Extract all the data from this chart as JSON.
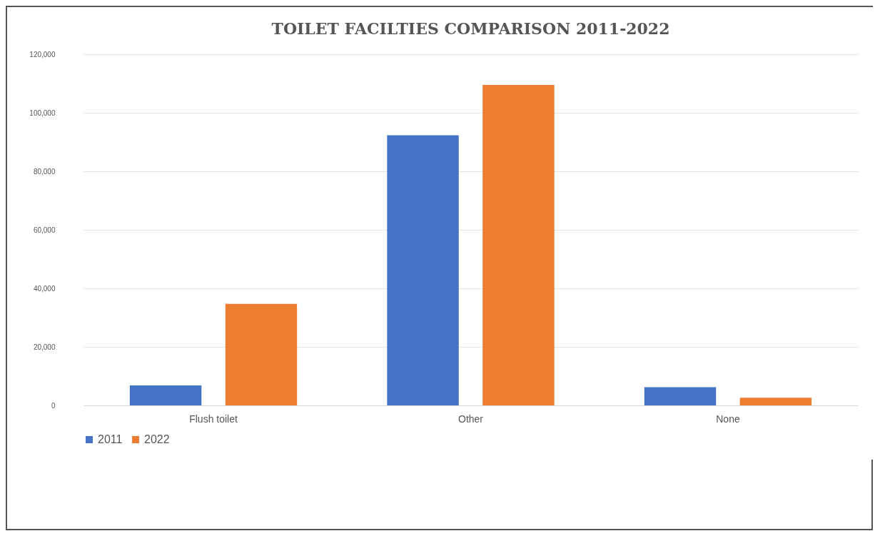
{
  "chart_data": {
    "type": "bar",
    "title": "TOILET FACILTIES COMPARISON 2011-2022",
    "categories": [
      "Flush toilet",
      "Other",
      "None"
    ],
    "series": [
      {
        "name": "2011",
        "color": "#4472c4",
        "values": [
          6800,
          92300,
          6200
        ]
      },
      {
        "name": "2022",
        "color": "#ed7d31",
        "values": [
          34700,
          109500,
          2600
        ]
      }
    ],
    "ylim": [
      0,
      120000
    ],
    "yticks": [
      {
        "value": 0,
        "label": "0"
      },
      {
        "value": 20000,
        "label": "20,000"
      },
      {
        "value": 40000,
        "label": "40,000"
      },
      {
        "value": 60000,
        "label": "60,000"
      },
      {
        "value": 80000,
        "label": "80,000"
      },
      {
        "value": 100000,
        "label": "100,000"
      },
      {
        "value": 120000,
        "label": "120,000"
      }
    ],
    "grid": "y",
    "legend": "bottom"
  }
}
